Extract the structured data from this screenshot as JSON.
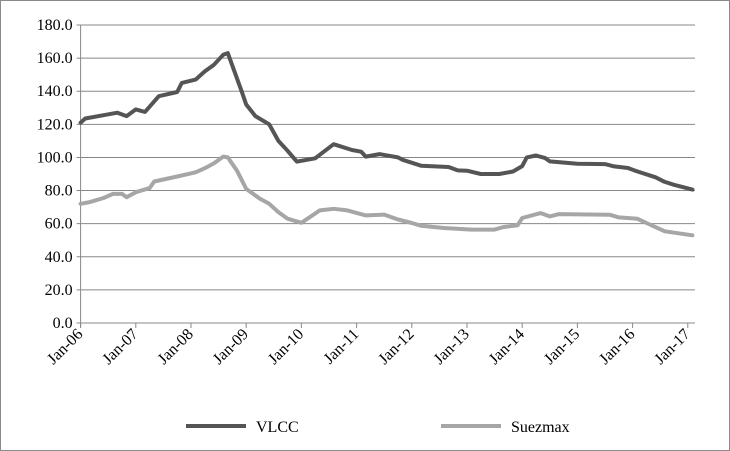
{
  "chart_data": {
    "type": "line",
    "title": "",
    "xlabel": "",
    "ylabel": "",
    "ylim": [
      0,
      180
    ],
    "yticks": [
      "0.0",
      "20.0",
      "40.0",
      "60.0",
      "80.0",
      "100.0",
      "120.0",
      "140.0",
      "160.0",
      "180.0"
    ],
    "xlim": [
      "2006-01",
      "2017-02"
    ],
    "xticks": [
      "Jan-06",
      "Jan-07",
      "Jan-08",
      "Jan-09",
      "Jan-10",
      "Jan-11",
      "Jan-12",
      "Jan-13",
      "Jan-14",
      "Jan-15",
      "Jan-16",
      "Jan-17"
    ],
    "grid": "horizontal",
    "legend": "bottom",
    "series": [
      {
        "name": "VLCC",
        "color": "#555555",
        "points": [
          [
            "2006-01",
            121
          ],
          [
            "2006-02",
            123.5
          ],
          [
            "2006-06",
            125.5
          ],
          [
            "2006-09",
            127
          ],
          [
            "2006-11",
            125
          ],
          [
            "2007-01",
            129
          ],
          [
            "2007-03",
            127.5
          ],
          [
            "2007-06",
            137
          ],
          [
            "2007-10",
            139.5
          ],
          [
            "2007-11",
            145
          ],
          [
            "2008-02",
            147
          ],
          [
            "2008-04",
            152
          ],
          [
            "2008-06",
            156
          ],
          [
            "2008-08",
            162
          ],
          [
            "2008-09",
            163
          ],
          [
            "2008-12",
            140
          ],
          [
            "2009-01",
            132
          ],
          [
            "2009-03",
            125
          ],
          [
            "2009-06",
            120
          ],
          [
            "2009-08",
            110
          ],
          [
            "2009-10",
            104
          ],
          [
            "2009-12",
            97.5
          ],
          [
            "2010-04",
            99.5
          ],
          [
            "2010-08",
            108
          ],
          [
            "2010-12",
            104.5
          ],
          [
            "2011-02",
            103.5
          ],
          [
            "2011-03",
            100.5
          ],
          [
            "2011-06",
            102
          ],
          [
            "2011-10",
            100
          ],
          [
            "2011-11",
            98.6
          ],
          [
            "2012-03",
            95
          ],
          [
            "2012-09",
            94.2
          ],
          [
            "2012-11",
            92.2
          ],
          [
            "2013-01",
            92
          ],
          [
            "2013-04",
            90
          ],
          [
            "2013-08",
            90
          ],
          [
            "2013-11",
            91.5
          ],
          [
            "2014-01",
            94.8
          ],
          [
            "2014-02",
            100
          ],
          [
            "2014-04",
            101.2
          ],
          [
            "2014-06",
            99.6
          ],
          [
            "2014-07",
            97.6
          ],
          [
            "2015-01",
            96.2
          ],
          [
            "2015-07",
            96
          ],
          [
            "2015-09",
            94.6
          ],
          [
            "2015-12",
            93.6
          ],
          [
            "2016-02",
            91.6
          ],
          [
            "2016-06",
            88
          ],
          [
            "2016-08",
            85.2
          ],
          [
            "2016-10",
            83.5
          ],
          [
            "2017-02",
            80.6
          ]
        ]
      },
      {
        "name": "Suezmax",
        "color": "#a6a6a6",
        "points": [
          [
            "2006-01",
            72
          ],
          [
            "2006-03",
            73
          ],
          [
            "2006-06",
            75.5
          ],
          [
            "2006-08",
            78
          ],
          [
            "2006-10",
            78
          ],
          [
            "2006-11",
            76
          ],
          [
            "2007-01",
            79
          ],
          [
            "2007-04",
            81.5
          ],
          [
            "2007-05",
            85.5
          ],
          [
            "2007-10",
            88.5
          ],
          [
            "2008-02",
            91
          ],
          [
            "2008-04",
            93.5
          ],
          [
            "2008-06",
            96.5
          ],
          [
            "2008-08",
            100.5
          ],
          [
            "2008-09",
            100
          ],
          [
            "2008-11",
            92
          ],
          [
            "2009-01",
            81
          ],
          [
            "2009-04",
            75
          ],
          [
            "2009-06",
            72
          ],
          [
            "2009-08",
            67
          ],
          [
            "2009-10",
            63
          ],
          [
            "2010-01",
            60.5
          ],
          [
            "2010-05",
            68
          ],
          [
            "2010-08",
            69
          ],
          [
            "2010-11",
            68
          ],
          [
            "2011-03",
            65
          ],
          [
            "2011-07",
            65.5
          ],
          [
            "2011-10",
            62.5
          ],
          [
            "2012-01",
            60.4
          ],
          [
            "2012-03",
            58.8
          ],
          [
            "2012-08",
            57.4
          ],
          [
            "2013-02",
            56.4
          ],
          [
            "2013-07",
            56.4
          ],
          [
            "2013-09",
            58
          ],
          [
            "2013-12",
            59
          ],
          [
            "2014-01",
            63.4
          ],
          [
            "2014-05",
            66.4
          ],
          [
            "2014-07",
            64.4
          ],
          [
            "2014-09",
            65.8
          ],
          [
            "2015-08",
            65.4
          ],
          [
            "2015-10",
            63.8
          ],
          [
            "2016-02",
            63
          ],
          [
            "2016-04",
            60.4
          ],
          [
            "2016-08",
            55.4
          ],
          [
            "2017-02",
            53
          ]
        ]
      }
    ]
  }
}
